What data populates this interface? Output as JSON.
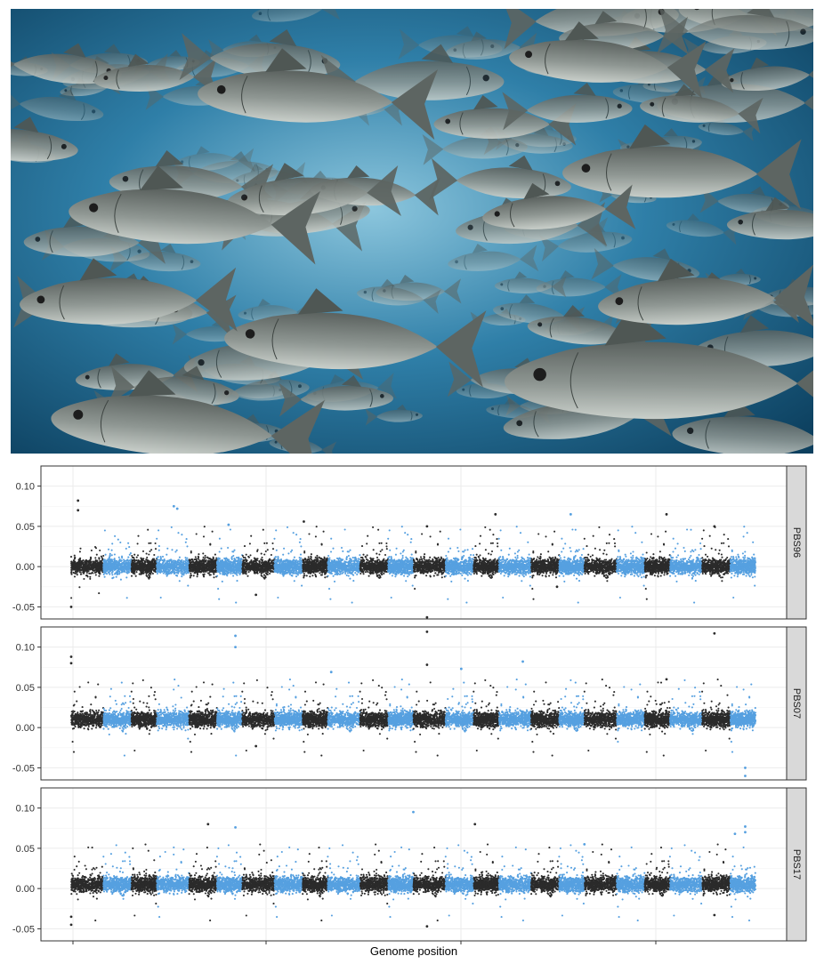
{
  "photo": {
    "subject": "school of sea bass swimming underwater",
    "colors": {
      "water_deep": "#0c3f5e",
      "water_mid": "#2f7fa8",
      "water_light": "#8cc6dd",
      "fish_back": "#5b625f",
      "fish_belly": "#c9cfca"
    }
  },
  "chart_data": {
    "type": "scatter",
    "subtype": "manhattan",
    "xlabel": "Genome position",
    "ylabel": "",
    "colors": {
      "odd_chromosome": "#2b2b2b",
      "even_chromosome": "#56a0e0",
      "panel_border": "#333333",
      "grid": "#ebebeb",
      "strip_bg": "#d9d9d9"
    },
    "n_chromosomes": 24,
    "grid": true,
    "panels": [
      {
        "name": "PBS96",
        "ylim": [
          -0.065,
          0.125
        ],
        "yticks": [
          -0.05,
          0.0,
          0.05,
          0.1
        ],
        "ytick_labels": [
          "-0.05",
          "0.00",
          "0.05",
          "0.10"
        ],
        "baseline": 0.0,
        "peaks": [
          {
            "pos": 0.01,
            "value": 0.082
          },
          {
            "pos": 0.01,
            "value": 0.07
          },
          {
            "pos": 0.0,
            "value": -0.05
          },
          {
            "pos": 0.15,
            "value": 0.075
          },
          {
            "pos": 0.155,
            "value": 0.072
          },
          {
            "pos": 0.23,
            "value": 0.052
          },
          {
            "pos": 0.34,
            "value": 0.056
          },
          {
            "pos": 0.52,
            "value": -0.063
          },
          {
            "pos": 0.52,
            "value": 0.05
          },
          {
            "pos": 0.62,
            "value": 0.065
          },
          {
            "pos": 0.73,
            "value": 0.065
          },
          {
            "pos": 0.87,
            "value": 0.065
          },
          {
            "pos": 0.94,
            "value": 0.05
          },
          {
            "pos": 0.27,
            "value": -0.035
          },
          {
            "pos": 0.71,
            "value": -0.025
          }
        ]
      },
      {
        "name": "PBS07",
        "ylim": [
          -0.065,
          0.125
        ],
        "yticks": [
          -0.05,
          0.0,
          0.05,
          0.1
        ],
        "ytick_labels": [
          "-0.05",
          "0.00",
          "0.05",
          "0.10"
        ],
        "baseline": 0.01,
        "peaks": [
          {
            "pos": 0.0,
            "value": 0.088
          },
          {
            "pos": 0.0,
            "value": 0.08
          },
          {
            "pos": 0.24,
            "value": 0.114
          },
          {
            "pos": 0.24,
            "value": 0.1
          },
          {
            "pos": 0.52,
            "value": 0.119
          },
          {
            "pos": 0.52,
            "value": 0.078
          },
          {
            "pos": 0.57,
            "value": 0.073
          },
          {
            "pos": 0.66,
            "value": 0.082
          },
          {
            "pos": 0.94,
            "value": 0.117
          },
          {
            "pos": 0.985,
            "value": -0.06
          },
          {
            "pos": 0.985,
            "value": -0.05
          },
          {
            "pos": 0.87,
            "value": 0.06
          },
          {
            "pos": 0.38,
            "value": 0.069
          },
          {
            "pos": 0.27,
            "value": -0.023
          }
        ]
      },
      {
        "name": "PBS17",
        "ylim": [
          -0.065,
          0.125
        ],
        "yticks": [
          -0.05,
          0.0,
          0.05,
          0.1
        ],
        "ytick_labels": [
          "-0.05",
          "0.00",
          "0.05",
          "0.10"
        ],
        "baseline": 0.005,
        "peaks": [
          {
            "pos": 0.0,
            "value": -0.045
          },
          {
            "pos": 0.0,
            "value": -0.035
          },
          {
            "pos": 0.5,
            "value": 0.095
          },
          {
            "pos": 0.59,
            "value": 0.08
          },
          {
            "pos": 0.2,
            "value": 0.08
          },
          {
            "pos": 0.24,
            "value": 0.076
          },
          {
            "pos": 0.985,
            "value": 0.077
          },
          {
            "pos": 0.985,
            "value": 0.07
          },
          {
            "pos": 0.97,
            "value": 0.068
          },
          {
            "pos": 0.52,
            "value": -0.047
          },
          {
            "pos": 0.94,
            "value": -0.033
          },
          {
            "pos": 0.75,
            "value": 0.055
          }
        ]
      }
    ]
  }
}
